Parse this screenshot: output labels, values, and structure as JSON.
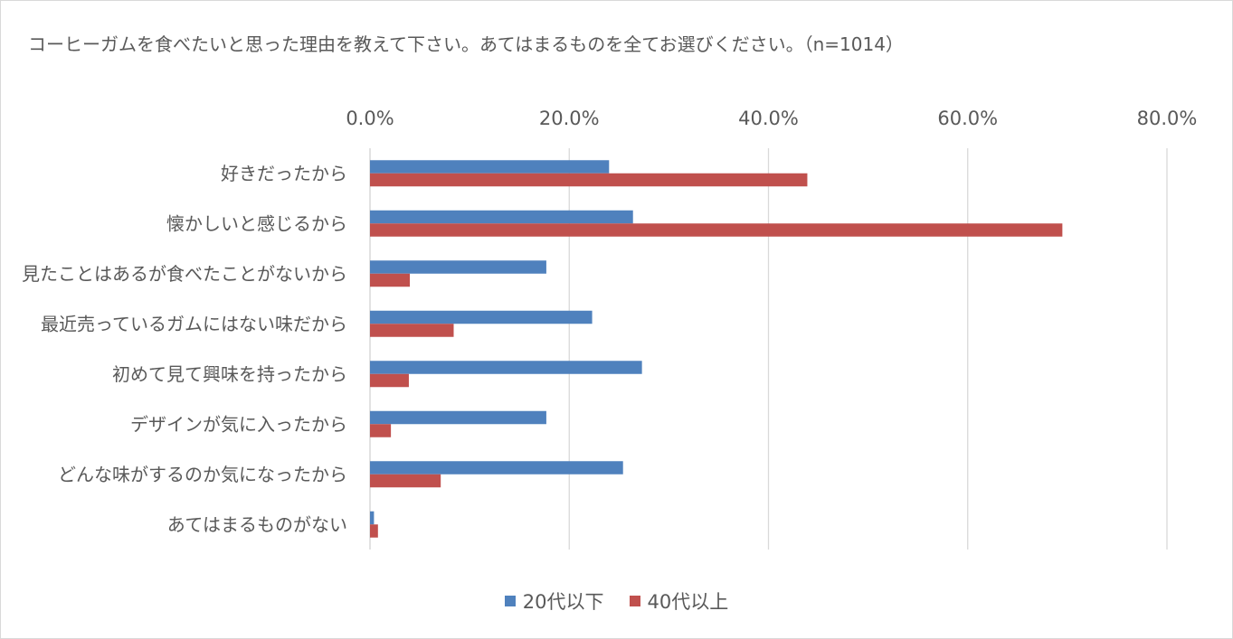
{
  "chart_data": {
    "type": "bar",
    "orientation": "horizontal",
    "title": "コーヒーガムを食べたいと思った理由を教えて下さい。あてはまるものを全てお選びください。（n=1014）",
    "categories": [
      "好きだったから",
      "懐かしいと感じるから",
      "見たことはあるが食べたことがないから",
      "最近売っているガムにはない味だから",
      "初めて見て興味を持ったから",
      "デザインが気に入ったから",
      "どんな味がするのか気になったから",
      "あてはまるものがない"
    ],
    "series": [
      {
        "name": "20代以下",
        "color": "#4f81bd",
        "values": [
          24.0,
          26.4,
          17.7,
          22.3,
          27.3,
          17.7,
          25.4,
          0.4
        ]
      },
      {
        "name": "40代以上",
        "color": "#c0504d",
        "values": [
          43.9,
          69.5,
          4.0,
          8.4,
          3.9,
          2.1,
          7.1,
          0.8
        ]
      }
    ],
    "xlim": [
      0,
      80
    ],
    "xticks": [
      0,
      20,
      40,
      60,
      80
    ],
    "tick_labels": [
      "0.0%",
      "20.0%",
      "40.0%",
      "60.0%",
      "80.0%"
    ],
    "xaxis_position": "top",
    "grid": true,
    "legend_position": "bottom"
  }
}
